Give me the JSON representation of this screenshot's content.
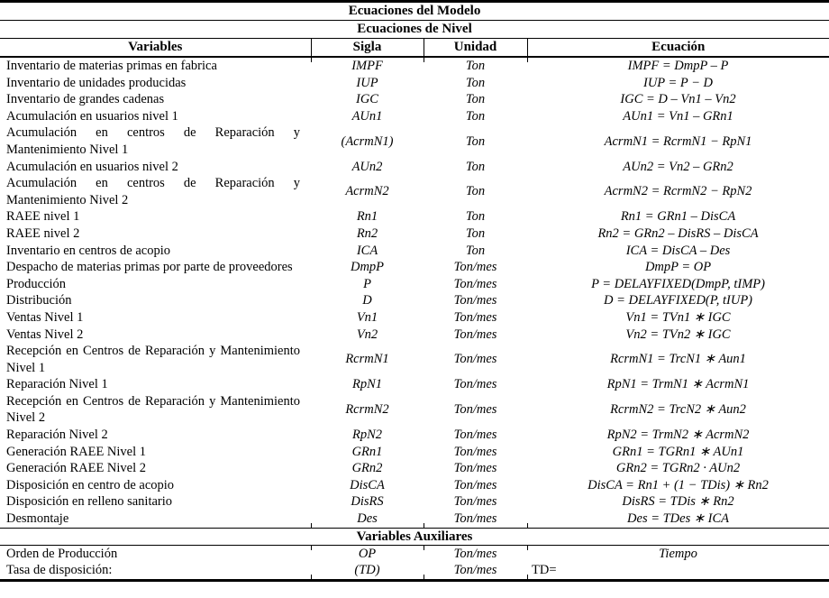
{
  "colors": {
    "text": "#000000",
    "border": "#000000",
    "background": "#ffffff"
  },
  "table": {
    "title": "Ecuaciones del Modelo",
    "level_section_title": "Ecuaciones de Nivel",
    "columns": [
      "Variables",
      "Sigla",
      "Unidad",
      "Ecuación"
    ],
    "rows": [
      {
        "variable": "Inventario de materias primas en fabrica",
        "sigla": "IMPF",
        "unidad": "Ton",
        "ecuacion": "IMPF = DmpP – P"
      },
      {
        "variable": "Inventario de unidades producidas",
        "sigla": "IUP",
        "unidad": "Ton",
        "ecuacion": "IUP = P − D"
      },
      {
        "variable": "Inventario de grandes cadenas",
        "sigla": "IGC",
        "unidad": "Ton",
        "ecuacion": "IGC = D – Vn1 – Vn2"
      },
      {
        "variable": "Acumulación en usuarios nivel 1",
        "sigla": "AUn1",
        "unidad": "Ton",
        "ecuacion": "AUn1 = Vn1 – GRn1"
      },
      {
        "variable": "Acumulación en centros de Reparación y Mantenimiento Nivel 1",
        "sigla": "(AcrmN1)",
        "unidad": "Ton",
        "ecuacion": "AcrmN1 = RcrmN1 − RpN1"
      },
      {
        "variable": "Acumulación en usuarios nivel 2",
        "sigla": "AUn2",
        "unidad": "Ton",
        "ecuacion": "AUn2 = Vn2 – GRn2"
      },
      {
        "variable": "Acumulación en centros de Reparación y Mantenimiento Nivel 2",
        "sigla": "AcrmN2",
        "unidad": "Ton",
        "ecuacion": "AcrmN2 = RcrmN2 − RpN2"
      },
      {
        "variable": "RAEE nivel 1",
        "sigla": "Rn1",
        "unidad": "Ton",
        "ecuacion": "Rn1 = GRn1 – DisCA"
      },
      {
        "variable": "RAEE nivel 2",
        "sigla": "Rn2",
        "unidad": "Ton",
        "ecuacion": "Rn2 = GRn2 – DisRS – DisCA"
      },
      {
        "variable": "Inventario en centros de acopio",
        "sigla": "ICA",
        "unidad": "Ton",
        "ecuacion": "ICA = DisCA – Des"
      },
      {
        "variable": "Despacho de materias primas por parte de proveedores",
        "sigla": "DmpP",
        "unidad": "Ton/mes",
        "ecuacion": "DmpP = OP"
      },
      {
        "variable": "Producción",
        "sigla": "P",
        "unidad": "Ton/mes",
        "ecuacion": "P = DELAYFIXED(DmpP, tIMP)"
      },
      {
        "variable": "Distribución",
        "sigla": "D",
        "unidad": "Ton/mes",
        "ecuacion": "D = DELAYFIXED(P, tIUP)"
      },
      {
        "variable": "Ventas Nivel 1",
        "sigla": "Vn1",
        "unidad": "Ton/mes",
        "ecuacion": "Vn1 = TVn1 ∗ IGC"
      },
      {
        "variable": "Ventas Nivel 2",
        "sigla": "Vn2",
        "unidad": "Ton/mes",
        "ecuacion": "Vn2 = TVn2 ∗ IGC"
      },
      {
        "variable": "Recepción en Centros de Reparación y Mantenimiento Nivel 1",
        "sigla": "RcrmN1",
        "unidad": "Ton/mes",
        "ecuacion": "RcrmN1 = TrcN1 ∗ Aun1"
      },
      {
        "variable": "Reparación Nivel 1",
        "sigla": "RpN1",
        "unidad": "Ton/mes",
        "ecuacion": "RpN1 = TrmN1 ∗ AcrmN1"
      },
      {
        "variable": "Recepción en Centros de Reparación y Mantenimiento Nivel 2",
        "sigla": "RcrmN2",
        "unidad": "Ton/mes",
        "ecuacion": "RcrmN2 = TrcN2 ∗ Aun2"
      },
      {
        "variable": "Reparación Nivel 2",
        "sigla": "RpN2",
        "unidad": "Ton/mes",
        "ecuacion": "RpN2 = TrmN2 ∗ AcrmN2"
      },
      {
        "variable": "Generación RAEE Nivel 1",
        "sigla": "GRn1",
        "unidad": "Ton/mes",
        "ecuacion": "GRn1 = TGRn1 ∗ AUn1"
      },
      {
        "variable": "Generación RAEE Nivel 2",
        "sigla": "GRn2",
        "unidad": "Ton/mes",
        "ecuacion": "GRn2 = TGRn2 · AUn2"
      },
      {
        "variable": "Disposición en centro de acopio",
        "sigla": "DisCA",
        "unidad": "Ton/mes",
        "ecuacion": "DisCA = Rn1 + (1 − TDis) ∗ Rn2"
      },
      {
        "variable": "Disposición en relleno sanitario",
        "sigla": "DisRS",
        "unidad": "Ton/mes",
        "ecuacion": "DisRS = TDis ∗ Rn2"
      },
      {
        "variable": "Desmontaje",
        "sigla": "Des",
        "unidad": "Ton/mes",
        "ecuacion": "Des = TDes ∗ ICA"
      }
    ],
    "aux_section_title": "Variables Auxiliares",
    "aux_rows": [
      {
        "variable": "Orden de Producción",
        "sigla": "OP",
        "unidad": "Ton/mes",
        "ecuacion": "Tiempo",
        "ecuacion_align": "center-italic"
      },
      {
        "variable": "Tasa de disposición:",
        "sigla": "(TD)",
        "unidad": "Ton/mes",
        "ecuacion": "TD=",
        "ecuacion_align": "left-roman"
      }
    ]
  }
}
